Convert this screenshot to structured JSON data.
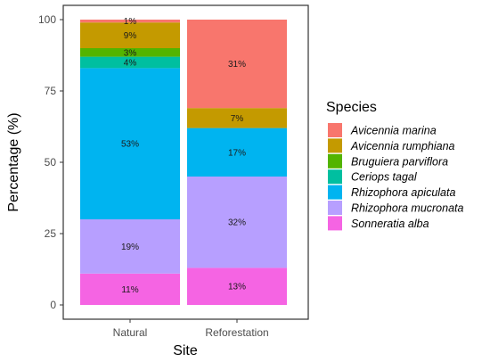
{
  "chart_data": {
    "type": "bar",
    "stacked": true,
    "categories": [
      "Natural",
      "Reforestation"
    ],
    "xlabel": "Site",
    "ylabel": "Percentage (%)",
    "ylim": [
      0,
      100
    ],
    "yticks": [
      0,
      25,
      50,
      75,
      100
    ],
    "grid": false,
    "legend": {
      "title": "Species",
      "placement": "right"
    },
    "series": [
      {
        "name": "Sonneratia alba",
        "color": "#F564E3",
        "values": [
          11,
          13
        ],
        "labels": [
          "11%",
          "13%"
        ]
      },
      {
        "name": "Rhizophora mucronata",
        "color": "#B79FFF",
        "values": [
          19,
          32
        ],
        "labels": [
          "19%",
          "32%"
        ]
      },
      {
        "name": "Rhizophora apiculata",
        "color": "#00B4F0",
        "values": [
          53,
          17
        ],
        "labels": [
          "53%",
          "17%"
        ]
      },
      {
        "name": "Ceriops tagal",
        "color": "#00BFA0",
        "values": [
          4,
          0
        ],
        "labels": [
          "4%",
          ""
        ]
      },
      {
        "name": "Bruguiera parviflora",
        "color": "#53B400",
        "values": [
          3,
          0
        ],
        "labels": [
          "3%",
          ""
        ]
      },
      {
        "name": "Avicennia rumphiana",
        "color": "#C49A00",
        "values": [
          9,
          7
        ],
        "labels": [
          "9%",
          "7%"
        ]
      },
      {
        "name": "Avicennia marina",
        "color": "#F8766D",
        "values": [
          1,
          31
        ],
        "labels": [
          "1%",
          "31%"
        ]
      }
    ],
    "legend_order": [
      "Avicennia marina",
      "Avicennia rumphiana",
      "Bruguiera parviflora",
      "Ceriops tagal",
      "Rhizophora apiculata",
      "Rhizophora mucronata",
      "Sonneratia alba"
    ]
  }
}
